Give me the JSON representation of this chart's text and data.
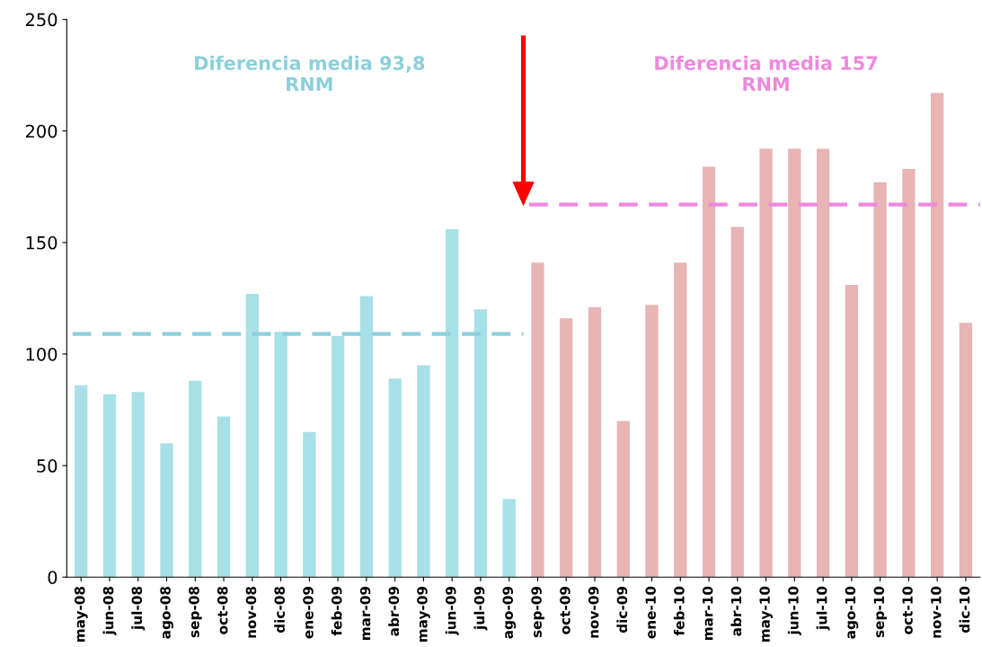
{
  "chart_data": {
    "type": "bar",
    "categories": [
      "may-08",
      "jun-08",
      "jul-08",
      "ago-08",
      "sep-08",
      "oct-08",
      "nov-08",
      "dic-08",
      "ene-09",
      "feb-09",
      "mar-09",
      "abr-09",
      "may-09",
      "jun-09",
      "jul-09",
      "ago-09",
      "sep-09",
      "oct-09",
      "nov-09",
      "dic-09",
      "ene-10",
      "feb-10",
      "mar-10",
      "abr-10",
      "may-10",
      "jun-10",
      "jul-10",
      "ago-10",
      "sep-10",
      "oct-10",
      "nov-10",
      "dic-10"
    ],
    "series": [
      {
        "color": "#a8e0e8",
        "values": [
          86,
          82,
          83,
          60,
          88,
          72,
          127,
          110,
          65,
          108,
          126,
          89,
          95,
          156,
          120,
          35,
          null,
          null,
          null,
          null,
          null,
          null,
          null,
          null,
          null,
          null,
          null,
          null,
          null,
          null,
          null,
          null
        ]
      },
      {
        "color": "#e8b4b4",
        "values": [
          null,
          null,
          null,
          null,
          null,
          null,
          null,
          null,
          null,
          null,
          null,
          null,
          null,
          null,
          null,
          null,
          141,
          116,
          121,
          70,
          122,
          141,
          184,
          157,
          192,
          192,
          192,
          131,
          177,
          183,
          217,
          114
        ]
      }
    ],
    "ylim": [
      0,
      250
    ],
    "yticks": [
      0,
      50,
      100,
      150,
      200,
      250
    ],
    "ref_lines": [
      {
        "axis": "y",
        "value": 109,
        "color": "#8ccfdc",
        "line_style": "dashed"
      },
      {
        "axis": "y",
        "value": 167,
        "color": "#ee88de",
        "line_style": "dashed"
      }
    ],
    "annotations": [
      "Diferencia media 93,8\nRNM",
      "Diferencia media 157\nRNM"
    ],
    "grid": false,
    "legend": false
  }
}
